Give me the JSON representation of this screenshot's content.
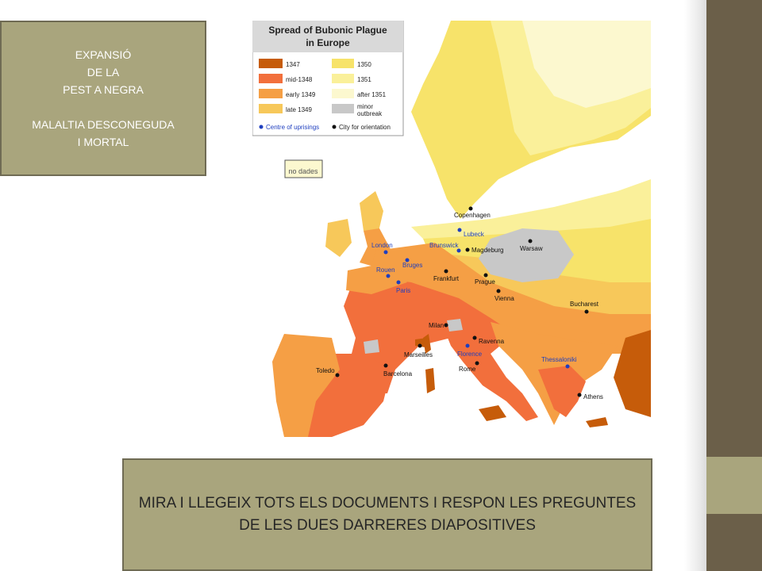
{
  "title_box": {
    "line1": "EXPANSIÓ",
    "line2": "DE LA",
    "line3": "PEST A NEGRA",
    "line4": "MALALTIA DESCONEGUDA",
    "line5": "I MORTAL"
  },
  "map": {
    "legend_title_1": "Spread of Bubonic Plague",
    "legend_title_2": "in Europe",
    "legend": {
      "c1347": {
        "label": "1347",
        "color": "#c65c0a"
      },
      "cmid1348": {
        "label": "mid-1348",
        "color": "#f26f3c"
      },
      "cearly1349": {
        "label": "early 1349",
        "color": "#f59f45"
      },
      "clate1349": {
        "label": "late 1349",
        "color": "#f7c85a"
      },
      "c1350": {
        "label": "1350",
        "color": "#f7e36a"
      },
      "c1351": {
        "label": "1351",
        "color": "#faf09a"
      },
      "cafter1351": {
        "label": "after 1351",
        "color": "#fcf8cf"
      },
      "cminor1": "minor",
      "cminor2": "outbreak",
      "cminor_color": "#c8c8c8"
    },
    "centre_label": "Centre of uprisings",
    "city_label": "City for orientation",
    "no_data_label": "no dades",
    "cities": {
      "copenhagen": "Copenhagen",
      "lubeck": "Lubeck",
      "brunswick": "Brunswick",
      "magdeburg": "Magdeburg",
      "warsaw": "Warsaw",
      "london": "London",
      "bruges": "Bruges",
      "rouen": "Rouen",
      "paris": "Paris",
      "frankfurt": "Frankfurt",
      "prague": "Prague",
      "vienna": "Vienna",
      "bucharest": "Bucharest",
      "milan": "Milan",
      "ravenna": "Ravenna",
      "florence": "Florence",
      "marseilles": "Marseilles",
      "barcelona": "Barcelona",
      "toledo": "Toledo",
      "rome": "Rome",
      "thessaloniki": "Thessaloniki",
      "athens": "Athens"
    },
    "centre_color": "#1f3fbf",
    "city_color": "#111111"
  },
  "instructions": {
    "line1": "MIRA I LLEGEIX TOTS ELS DOCUMENTS I RESPON LES PREGUNTES",
    "line2": "DE LES DUES DARRERES DIAPOSITIVES"
  },
  "colors": {
    "sidebar": "#6b5f49",
    "box_bg": "#a9a57d",
    "sea": "#ffffff"
  }
}
